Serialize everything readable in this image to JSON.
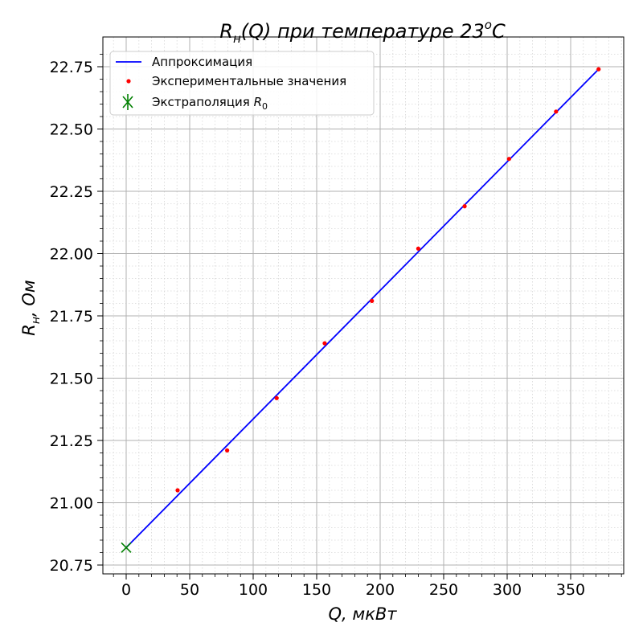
{
  "chart_data": {
    "type": "line",
    "title": {
      "main": "R",
      "sub": "н",
      "mid": "(Q) при температуре 23",
      "sup": "o",
      "end": "C"
    },
    "xlabel": "Q, мкВт",
    "ylabel": {
      "main": "R",
      "sub": "н",
      "end": ", Ом"
    },
    "xlim": [
      -18,
      390
    ],
    "ylim": [
      20.715,
      22.82
    ],
    "x_ticks": [
      0,
      50,
      100,
      150,
      200,
      250,
      300,
      350
    ],
    "x_tick_labels": [
      "0",
      "50",
      "100",
      "150",
      "200",
      "250",
      "300",
      "350"
    ],
    "y_ticks": [
      20.75,
      21.0,
      21.25,
      21.5,
      21.75,
      22.0,
      22.25,
      22.5,
      22.75
    ],
    "y_tick_labels": [
      "20.75",
      "21.00",
      "21.25",
      "21.50",
      "21.75",
      "22.00",
      "22.25",
      "22.50",
      "22.75"
    ],
    "x_minor_step": 10,
    "y_minor_step": 0.05,
    "grid": true,
    "legend_position": "top-left",
    "series": [
      {
        "name": "Аппроксимация",
        "kind": "line",
        "color": "#0000ff",
        "x": [
          0,
          372
        ],
        "y": [
          20.82,
          22.74
        ]
      },
      {
        "name": "Экспериментальные значения",
        "kind": "points",
        "color": "#ff0000",
        "x": [
          40.5,
          79.5,
          118.5,
          156.3,
          193.5,
          230,
          266.5,
          301.5,
          338.5,
          372
        ],
        "y": [
          21.05,
          21.21,
          21.42,
          21.64,
          21.81,
          22.02,
          22.19,
          22.38,
          22.57,
          22.74
        ]
      },
      {
        "name": "Экстраполяция R0",
        "legend": {
          "main": "Экстраполяция ",
          "math": "R",
          "sub": "0"
        },
        "kind": "marker",
        "color": "#008000",
        "x": [
          0
        ],
        "y": [
          20.82
        ]
      }
    ]
  }
}
